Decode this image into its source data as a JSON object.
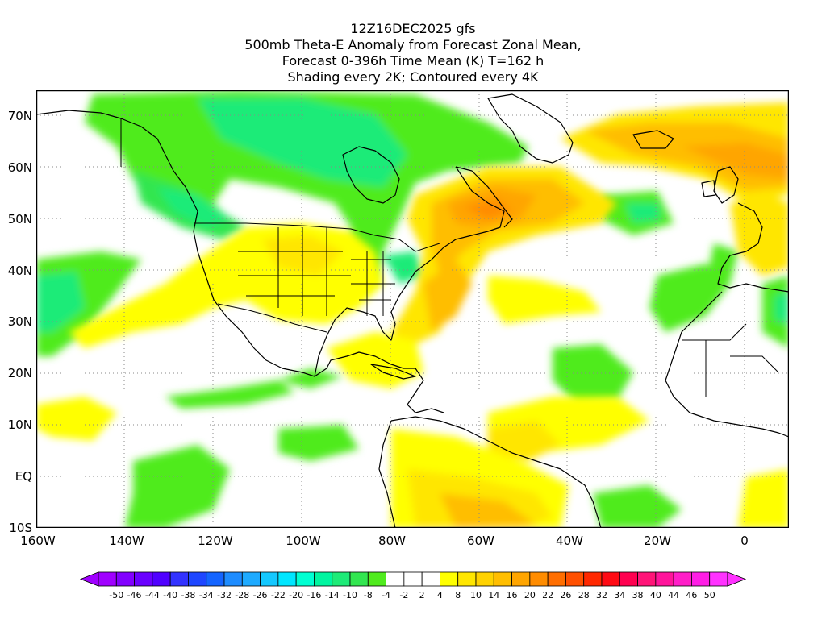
{
  "title": {
    "lines": [
      "12Z16DEC2025 gfs",
      "500mb Theta-E Anomaly from Forecast Zonal Mean,",
      "Forecast 0-396h Time Mean (K) T=162 h",
      "Shading every 2K; Contoured every 4K"
    ]
  },
  "map": {
    "projection": "lat-lon",
    "lon_range": [
      -160,
      10
    ],
    "lat_range": [
      -10,
      75
    ],
    "lat_labels": [
      "70N",
      "60N",
      "50N",
      "40N",
      "30N",
      "20N",
      "10N",
      "EQ",
      "10S"
    ],
    "lon_labels": [
      "160W",
      "140W",
      "120W",
      "100W",
      "80W",
      "60W",
      "40W",
      "20W",
      "0"
    ],
    "grid": true,
    "coastline_color": "#000000",
    "positive_anomaly_regions": [
      "Eastern Canada / Labrador",
      "North Atlantic",
      "Central United States",
      "South America",
      "Western Europe"
    ],
    "negative_anomaly_regions": [
      "Canada / Alaska",
      "Eastern Pacific",
      "Central Atlantic",
      "Equatorial Pacific"
    ]
  },
  "colorbar": {
    "labels": [
      "-50",
      "-46",
      "-44",
      "-40",
      "-38",
      "-34",
      "-32",
      "-28",
      "-26",
      "-22",
      "-20",
      "-16",
      "-14",
      "-10",
      "-8",
      "-4",
      "-2",
      "2",
      "4",
      "8",
      "10",
      "14",
      "16",
      "20",
      "22",
      "26",
      "28",
      "32",
      "34",
      "38",
      "40",
      "44",
      "46",
      "50"
    ],
    "colors": [
      "#a000ff",
      "#8200ff",
      "#6a00ff",
      "#5000ff",
      "#3232ff",
      "#1e46ff",
      "#1464ff",
      "#1e8cff",
      "#1eaaff",
      "#14c8ff",
      "#00e6ff",
      "#00ffd2",
      "#00f5a0",
      "#1eeb78",
      "#32e650",
      "#50eb1e",
      "#ffffff",
      "#ffffff",
      "#ffffff",
      "#ffff00",
      "#ffe600",
      "#ffd200",
      "#ffbe00",
      "#ffa500",
      "#ff8c00",
      "#ff6e00",
      "#ff5000",
      "#ff2800",
      "#ff0a14",
      "#ff0050",
      "#ff1478",
      "#ff149b",
      "#ff1ec8",
      "#ff1ee6",
      "#ff32ff"
    ]
  }
}
